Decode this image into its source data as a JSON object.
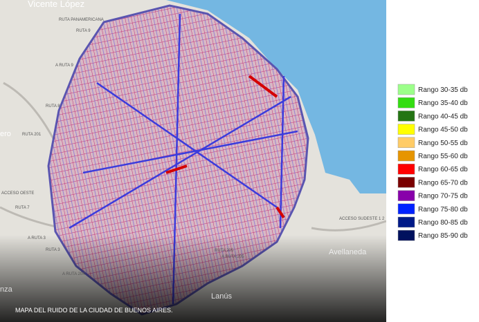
{
  "map": {
    "labels": [
      "Vicente López",
      "RUTA PANAMERICANA",
      "RUTA 9",
      "A RUTA 9",
      "RUTA 8",
      "ero",
      "RUTA 201",
      "ACCESO OESTE",
      "RUTA 7",
      "A RUTA 3",
      "RUTA 3",
      "A RUTA 204",
      "RUTA 205",
      "A RUTA 205",
      "ACCESO SUDESTE 1 2",
      "Avellaneda",
      "Lanús",
      "nza"
    ]
  },
  "legend": {
    "items": [
      {
        "label": "Rango 30-35 db",
        "color": "#9cff8a"
      },
      {
        "label": "Rango 35-40 db",
        "color": "#33dd11"
      },
      {
        "label": "Rango 40-45 db",
        "color": "#247514"
      },
      {
        "label": "Rango 45-50 db",
        "color": "#ffff00"
      },
      {
        "label": "Rango 50-55 db",
        "color": "#ffcc66"
      },
      {
        "label": "Rango 55-60 db",
        "color": "#e69500"
      },
      {
        "label": "Rango 60-65 db",
        "color": "#ff0000"
      },
      {
        "label": "Rango 65-70 db",
        "color": "#7a0000"
      },
      {
        "label": "Rango 70-75 db",
        "color": "#8800aa"
      },
      {
        "label": "Rango 75-80 db",
        "color": "#0022ff"
      },
      {
        "label": "Rango 80-85 db",
        "color": "#001a88"
      },
      {
        "label": "Rango 85-90 db",
        "color": "#00115e"
      }
    ]
  },
  "caption": "MAPA DEL RUIDO DE LA CIUDAD DE BUENOS AIRES."
}
